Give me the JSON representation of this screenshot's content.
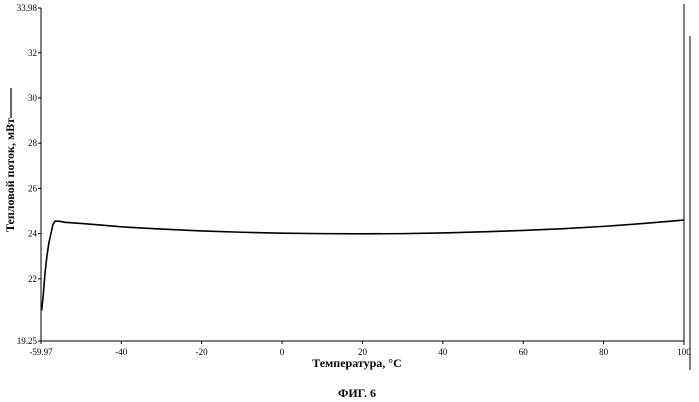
{
  "chart_data": {
    "type": "line",
    "title": "",
    "xlabel": "Температура, °C",
    "ylabel": "Тепловой поток, мВт",
    "caption": "ФИГ. 6",
    "xlim": [
      -59.97,
      100
    ],
    "ylim": [
      19.25,
      33.98
    ],
    "x_ticks": [
      "-59.97",
      "-40",
      "-20",
      "0",
      "20",
      "40",
      "60",
      "80",
      "100"
    ],
    "x_tick_values": [
      -59.97,
      -40,
      -20,
      0,
      20,
      40,
      60,
      80,
      100
    ],
    "y_ticks": [
      "19.25",
      "22",
      "24",
      "26",
      "28",
      "30",
      "32",
      "33.98"
    ],
    "y_tick_values": [
      19.25,
      22,
      24,
      26,
      28,
      30,
      32,
      33.98
    ],
    "grid": false,
    "series": [
      {
        "color": "#000000",
        "points": [
          [
            -59.8,
            20.6
          ],
          [
            -59.4,
            21.3
          ],
          [
            -59.0,
            22.2
          ],
          [
            -58.5,
            23.0
          ],
          [
            -58.0,
            23.6
          ],
          [
            -57.5,
            24.0
          ],
          [
            -57.0,
            24.4
          ],
          [
            -56.5,
            24.55
          ],
          [
            -55.5,
            24.55
          ],
          [
            -54.0,
            24.5
          ],
          [
            -50.0,
            24.45
          ],
          [
            -45.0,
            24.38
          ],
          [
            -40.0,
            24.3
          ],
          [
            -30.0,
            24.2
          ],
          [
            -20.0,
            24.12
          ],
          [
            -10.0,
            24.06
          ],
          [
            0.0,
            24.02
          ],
          [
            10.0,
            24.0
          ],
          [
            20.0,
            23.99
          ],
          [
            30.0,
            24.0
          ],
          [
            40.0,
            24.03
          ],
          [
            50.0,
            24.08
          ],
          [
            60.0,
            24.14
          ],
          [
            70.0,
            24.22
          ],
          [
            80.0,
            24.32
          ],
          [
            90.0,
            24.45
          ],
          [
            100.0,
            24.6
          ]
        ]
      }
    ]
  }
}
